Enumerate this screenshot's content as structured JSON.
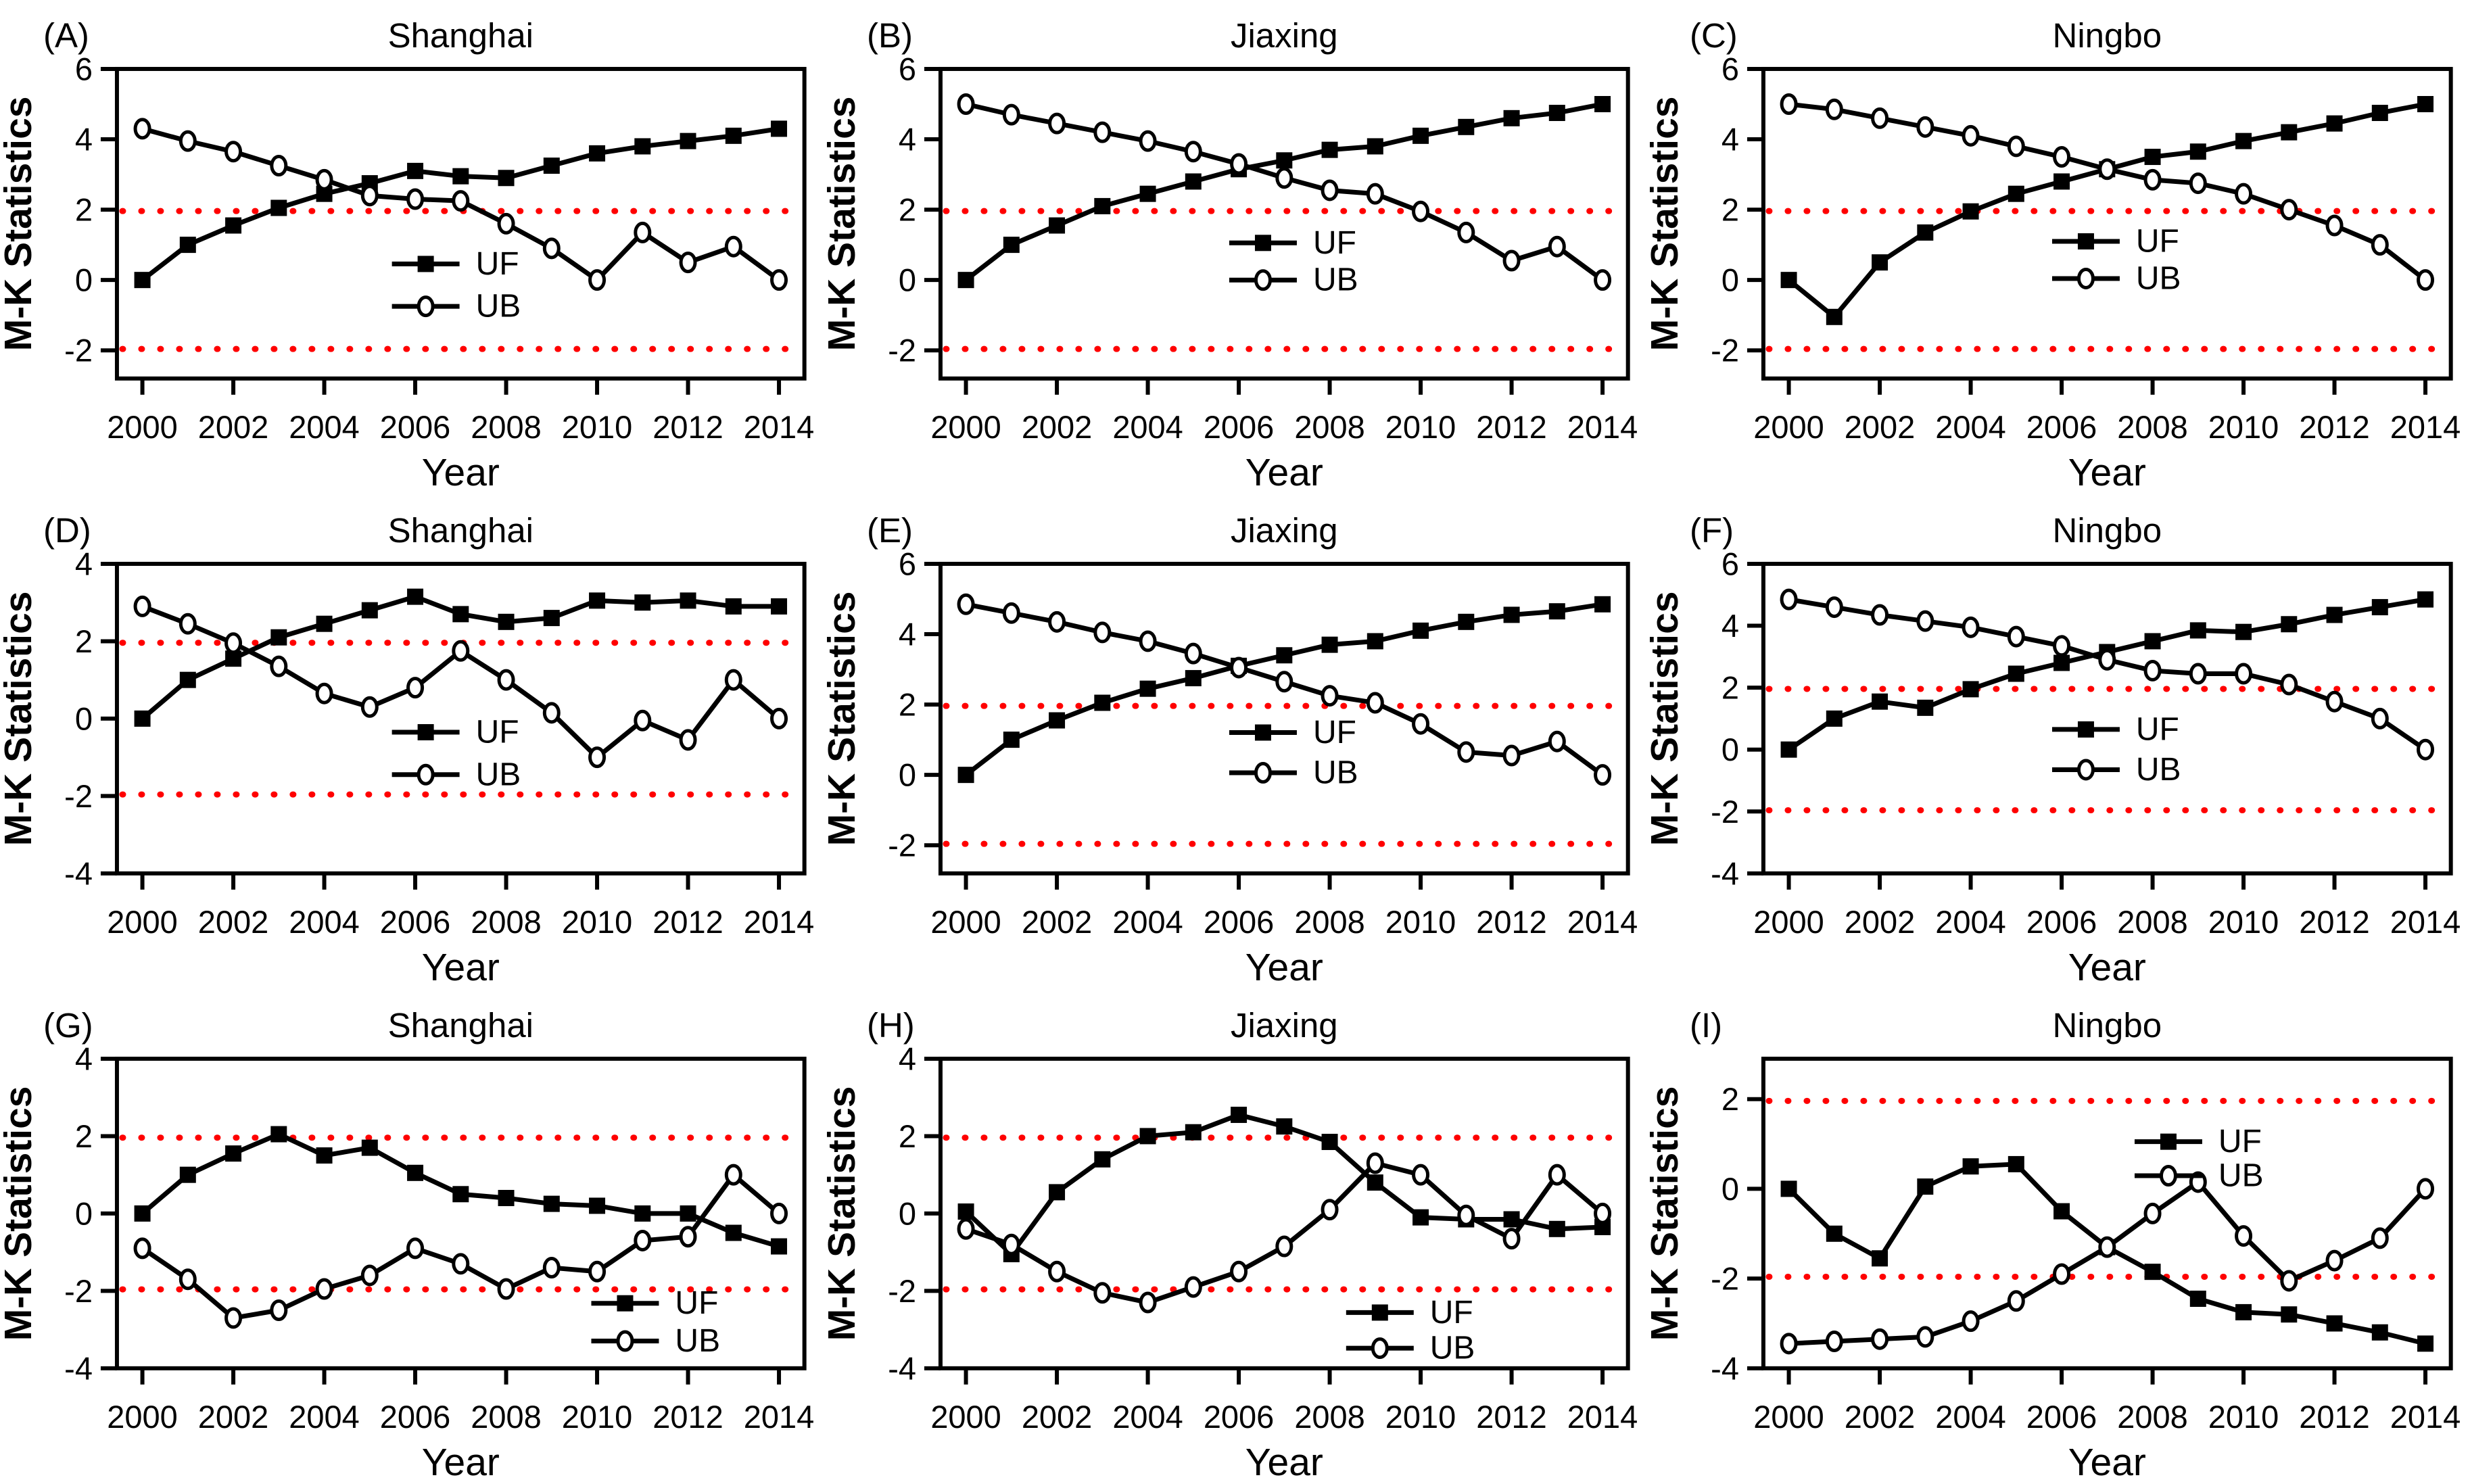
{
  "figure": {
    "x_label": "Year",
    "y_label": "M-K Statistics",
    "years": [
      2000,
      2001,
      2002,
      2003,
      2004,
      2005,
      2006,
      2007,
      2008,
      2009,
      2010,
      2011,
      2012,
      2013,
      2014
    ],
    "x_ticks": [
      2000,
      2002,
      2004,
      2006,
      2008,
      2010,
      2012,
      2014
    ],
    "significance": {
      "upper": 1.96,
      "lower": -1.96
    },
    "legend": [
      {
        "name": "UF",
        "marker": "filled-square"
      },
      {
        "name": "UB",
        "marker": "open-circle"
      }
    ],
    "colors": {
      "series": "#000000",
      "reference": "#FF0000",
      "background": "#FFFFFF"
    }
  },
  "chart_data": [
    {
      "panel": "(A)",
      "title": "Shanghai",
      "type": "line",
      "ylim": [
        -2.8,
        6
      ],
      "yticks": [
        -2,
        0,
        2,
        4,
        6
      ],
      "ref_lines": [
        1.96,
        -1.96
      ],
      "legend_pos": {
        "fx": 0.4,
        "fy": 0.63,
        "dy": 0.137
      },
      "series": [
        {
          "name": "UF",
          "marker": "filled-square",
          "values": [
            0,
            1.0,
            1.55,
            2.05,
            2.45,
            2.75,
            3.1,
            2.95,
            2.9,
            3.25,
            3.6,
            3.8,
            3.95,
            4.1,
            4.3
          ]
        },
        {
          "name": "UB",
          "marker": "open-circle",
          "values": [
            4.3,
            3.95,
            3.65,
            3.25,
            2.85,
            2.4,
            2.3,
            2.25,
            1.6,
            0.9,
            0.0,
            1.35,
            0.5,
            0.95,
            0.0
          ]
        }
      ]
    },
    {
      "panel": "(B)",
      "title": "Jiaxing",
      "type": "line",
      "ylim": [
        -2.8,
        6
      ],
      "yticks": [
        -2,
        0,
        2,
        4,
        6
      ],
      "ref_lines": [
        1.96,
        -1.96
      ],
      "legend_pos": {
        "fx": 0.42,
        "fy": 0.562,
        "dy": 0.12
      },
      "series": [
        {
          "name": "UF",
          "marker": "filled-square",
          "values": [
            0,
            1.0,
            1.55,
            2.1,
            2.45,
            2.8,
            3.15,
            3.4,
            3.7,
            3.8,
            4.1,
            4.35,
            4.6,
            4.75,
            5.0
          ]
        },
        {
          "name": "UB",
          "marker": "open-circle",
          "values": [
            5.0,
            4.7,
            4.45,
            4.2,
            3.95,
            3.65,
            3.3,
            2.9,
            2.55,
            2.45,
            1.95,
            1.35,
            0.55,
            0.95,
            0.0
          ]
        }
      ]
    },
    {
      "panel": "(C)",
      "title": "Ningbo",
      "type": "line",
      "ylim": [
        -2.8,
        6
      ],
      "yticks": [
        -2,
        0,
        2,
        4,
        6
      ],
      "ref_lines": [
        1.96,
        -1.96
      ],
      "legend_pos": {
        "fx": 0.42,
        "fy": 0.557,
        "dy": 0.12
      },
      "series": [
        {
          "name": "UF",
          "marker": "filled-square",
          "values": [
            0,
            -1.05,
            0.5,
            1.35,
            1.95,
            2.45,
            2.8,
            3.15,
            3.5,
            3.65,
            3.95,
            4.2,
            4.45,
            4.75,
            5.0
          ]
        },
        {
          "name": "UB",
          "marker": "open-circle",
          "values": [
            5.0,
            4.85,
            4.6,
            4.35,
            4.1,
            3.8,
            3.5,
            3.15,
            2.85,
            2.75,
            2.45,
            2.0,
            1.55,
            1.0,
            0.0
          ]
        }
      ]
    },
    {
      "panel": "(D)",
      "title": "Shanghai",
      "type": "line",
      "ylim": [
        -4,
        4
      ],
      "yticks": [
        -4,
        -2,
        0,
        2,
        4
      ],
      "ref_lines": [
        1.96,
        -1.96
      ],
      "legend_pos": {
        "fx": 0.4,
        "fy": 0.544,
        "dy": 0.137
      },
      "series": [
        {
          "name": "UF",
          "marker": "filled-square",
          "values": [
            0,
            1.0,
            1.55,
            2.1,
            2.45,
            2.8,
            3.15,
            2.7,
            2.5,
            2.6,
            3.05,
            3.0,
            3.05,
            2.9,
            2.9
          ]
        },
        {
          "name": "UB",
          "marker": "open-circle",
          "values": [
            2.9,
            2.45,
            1.95,
            1.35,
            0.65,
            0.3,
            0.8,
            1.75,
            1.0,
            0.15,
            -1.0,
            -0.05,
            -0.55,
            1.0,
            0.0
          ]
        }
      ]
    },
    {
      "panel": "(E)",
      "title": "Jiaxing",
      "type": "line",
      "ylim": [
        -2.8,
        6
      ],
      "yticks": [
        -2,
        0,
        2,
        4,
        6
      ],
      "ref_lines": [
        1.96,
        -1.96
      ],
      "legend_pos": {
        "fx": 0.42,
        "fy": 0.545,
        "dy": 0.13
      },
      "series": [
        {
          "name": "UF",
          "marker": "filled-square",
          "values": [
            0,
            1.0,
            1.55,
            2.05,
            2.45,
            2.75,
            3.1,
            3.4,
            3.7,
            3.8,
            4.1,
            4.35,
            4.55,
            4.65,
            4.85
          ]
        },
        {
          "name": "UB",
          "marker": "open-circle",
          "values": [
            4.85,
            4.6,
            4.35,
            4.05,
            3.8,
            3.45,
            3.05,
            2.65,
            2.25,
            2.05,
            1.45,
            0.65,
            0.55,
            0.95,
            0.0
          ]
        }
      ]
    },
    {
      "panel": "(F)",
      "title": "Ningbo",
      "type": "line",
      "ylim": [
        -4,
        6
      ],
      "yticks": [
        -4,
        -2,
        0,
        2,
        4,
        6
      ],
      "ref_lines": [
        1.96,
        -1.96
      ],
      "legend_pos": {
        "fx": 0.42,
        "fy": 0.535,
        "dy": 0.13
      },
      "series": [
        {
          "name": "UF",
          "marker": "filled-square",
          "values": [
            0,
            1.0,
            1.55,
            1.35,
            1.95,
            2.45,
            2.8,
            3.15,
            3.5,
            3.85,
            3.8,
            4.05,
            4.35,
            4.6,
            4.85
          ]
        },
        {
          "name": "UB",
          "marker": "open-circle",
          "values": [
            4.85,
            4.6,
            4.35,
            4.15,
            3.95,
            3.65,
            3.35,
            2.9,
            2.55,
            2.45,
            2.45,
            2.1,
            1.55,
            1.0,
            0.0
          ]
        }
      ]
    },
    {
      "panel": "(G)",
      "title": "Shanghai",
      "type": "line",
      "ylim": [
        -4,
        4
      ],
      "yticks": [
        -4,
        -2,
        0,
        2,
        4
      ],
      "ref_lines": [
        1.96,
        -1.96
      ],
      "legend_pos": {
        "fx": 0.69,
        "fy": 0.79,
        "dy": 0.122
      },
      "series": [
        {
          "name": "UF",
          "marker": "filled-square",
          "values": [
            0,
            1.0,
            1.55,
            2.05,
            1.5,
            1.7,
            1.05,
            0.5,
            0.4,
            0.25,
            0.2,
            0.0,
            0.0,
            -0.5,
            -0.85
          ]
        },
        {
          "name": "UB",
          "marker": "open-circle",
          "values": [
            -0.9,
            -1.7,
            -2.7,
            -2.5,
            -1.95,
            -1.6,
            -0.9,
            -1.3,
            -1.95,
            -1.4,
            -1.5,
            -0.7,
            -0.6,
            1.0,
            0.0
          ]
        }
      ]
    },
    {
      "panel": "(H)",
      "title": "Jiaxing",
      "type": "line",
      "ylim": [
        -4,
        4
      ],
      "yticks": [
        -4,
        -2,
        0,
        2,
        4
      ],
      "ref_lines": [
        1.96,
        -1.96
      ],
      "legend_pos": {
        "fx": 0.59,
        "fy": 0.82,
        "dy": 0.115
      },
      "series": [
        {
          "name": "UF",
          "marker": "filled-square",
          "values": [
            0.05,
            -1.05,
            0.55,
            1.4,
            2.0,
            2.1,
            2.55,
            2.25,
            1.85,
            0.8,
            -0.1,
            -0.15,
            -0.15,
            -0.4,
            -0.35
          ]
        },
        {
          "name": "UB",
          "marker": "open-circle",
          "values": [
            -0.4,
            -0.8,
            -1.5,
            -2.05,
            -2.3,
            -1.9,
            -1.5,
            -0.85,
            0.1,
            1.3,
            1.0,
            -0.05,
            -0.65,
            1.0,
            0.0
          ]
        }
      ]
    },
    {
      "panel": "(I)",
      "title": "Ningbo",
      "type": "line",
      "ylim": [
        -4,
        2.9
      ],
      "yticks": [
        -4,
        -2,
        0,
        2
      ],
      "ref_lines": [
        1.96,
        -1.96
      ],
      "legend_pos": {
        "fx": 0.54,
        "fy": 0.268,
        "dy": 0.11
      },
      "series": [
        {
          "name": "UF",
          "marker": "filled-square",
          "values": [
            0,
            -1.0,
            -1.55,
            0.05,
            0.5,
            0.55,
            -0.5,
            -1.3,
            -1.85,
            -2.45,
            -2.75,
            -2.8,
            -3.0,
            -3.2,
            -3.45
          ]
        },
        {
          "name": "UB",
          "marker": "open-circle",
          "values": [
            -3.45,
            -3.4,
            -3.35,
            -3.3,
            -2.95,
            -2.5,
            -1.9,
            -1.3,
            -0.55,
            0.15,
            -1.05,
            -2.05,
            -1.6,
            -1.1,
            0.0
          ]
        }
      ]
    }
  ]
}
